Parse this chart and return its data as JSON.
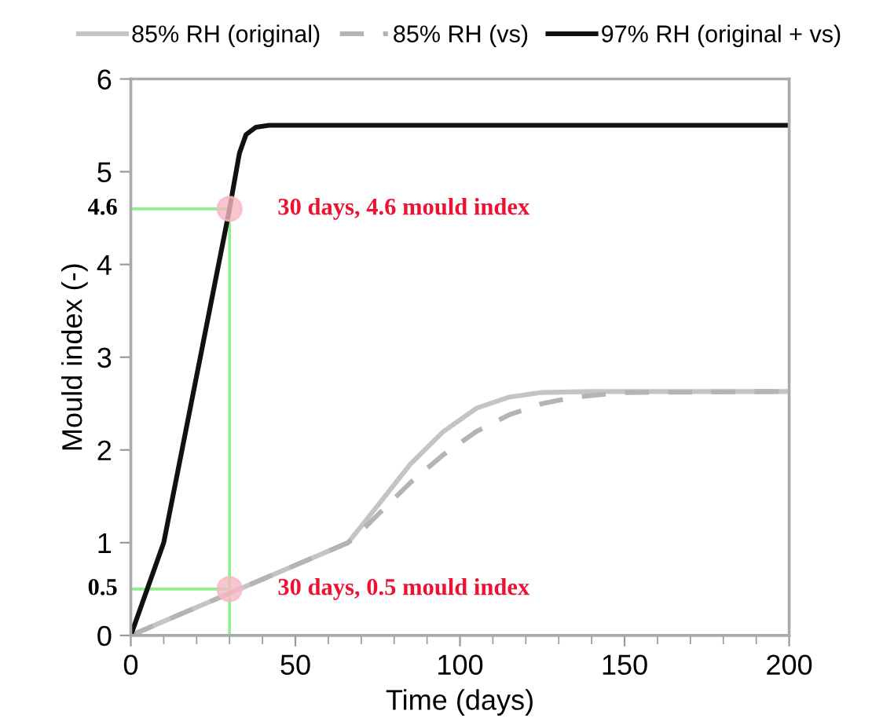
{
  "chart_data": {
    "type": "line",
    "xlabel": "Time (days)",
    "ylabel": "Mould index (-)",
    "xlim": [
      0,
      200
    ],
    "xticks": [
      0,
      50,
      100,
      150,
      200
    ],
    "ylim": [
      0,
      6
    ],
    "yticks": [
      0,
      1,
      2,
      3,
      4,
      5,
      6
    ],
    "grid": false,
    "legend": "top",
    "marker": "none",
    "series": [
      {
        "name": "85% RH (original)",
        "color": "#c4c4c4",
        "line_style": "solid",
        "x": [
          0,
          66,
          75,
          85,
          95,
          105,
          115,
          125,
          140,
          200
        ],
        "values": [
          0,
          1,
          1.4,
          1.85,
          2.2,
          2.45,
          2.57,
          2.62,
          2.63,
          2.63
        ]
      },
      {
        "name": "85% RH (vs)",
        "color": "#b4b4b4",
        "line_style": "dashed",
        "x": [
          0,
          66,
          68,
          75,
          85,
          95,
          105,
          115,
          125,
          135,
          150,
          200
        ],
        "values": [
          0,
          1,
          1.05,
          1.3,
          1.65,
          1.95,
          2.2,
          2.38,
          2.5,
          2.57,
          2.62,
          2.63
        ]
      },
      {
        "name": "97% RH (original + vs)",
        "color": "#111111",
        "line_style": "solid",
        "x": [
          0,
          10,
          30,
          33,
          35,
          38,
          42,
          200
        ],
        "values": [
          0,
          1,
          4.6,
          5.2,
          5.4,
          5.48,
          5.5,
          5.5
        ]
      }
    ],
    "ref_lines": [
      {
        "axis": "y",
        "value": 4.6,
        "label": "4.6",
        "color": "#90ee90"
      },
      {
        "axis": "y",
        "value": 0.5,
        "label": "0.5",
        "color": "#90ee90"
      },
      {
        "axis": "x",
        "value": 30,
        "color": "#90ee90"
      }
    ],
    "annotations": [
      {
        "text": "30 days, 4.6 mould index",
        "x": 30,
        "y": 4.6
      },
      {
        "text": "30 days, 0.5 mould index",
        "x": 30,
        "y": 0.5
      }
    ]
  }
}
